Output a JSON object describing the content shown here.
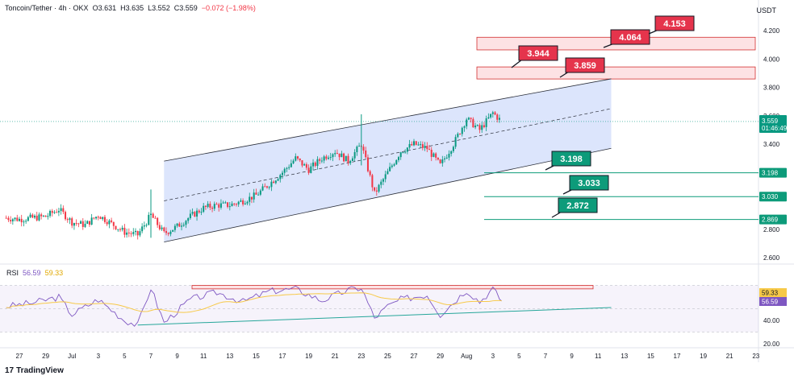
{
  "header": {
    "symbol": "Toncoin/Tether · 4h · OKX",
    "open": "O3.631",
    "high": "H3.635",
    "low": "L3.552",
    "close": "C3.559",
    "change": "−0.072 (−1.98%)"
  },
  "currency": "USDT",
  "price_axis": {
    "ticks": [
      "4.200",
      "4.000",
      "3.800",
      "3.600",
      "3.400",
      "2.800",
      "2.600"
    ]
  },
  "price_tags": {
    "current_price": "3.559",
    "countdown": "01:46:49",
    "level_1": "3.198",
    "level_2": "3.030",
    "level_3": "2.869"
  },
  "time_axis": {
    "ticks": [
      "27",
      "29",
      "Jul",
      "3",
      "5",
      "7",
      "9",
      "11",
      "13",
      "15",
      "17",
      "19",
      "21",
      "23",
      "25",
      "27",
      "29",
      "Aug",
      "3",
      "5",
      "7",
      "9",
      "11",
      "13",
      "15",
      "17",
      "19",
      "21",
      "23"
    ]
  },
  "annotations": {
    "targets": [
      "3.944",
      "3.859",
      "4.064",
      "4.153"
    ],
    "supports": [
      "3.198",
      "3.033",
      "2.872"
    ]
  },
  "rsi": {
    "label": "RSI",
    "value": "56.59",
    "ma_value": "59.33",
    "axis_ticks": [
      "40.00",
      "20.00"
    ],
    "tag_ma": "59.33",
    "tag_value": "56.59"
  },
  "footer": {
    "brand": "TradingView"
  },
  "colors": {
    "up": "#089981",
    "down": "#f23645",
    "channel_fill": "#d6e0fb",
    "resistance_fill": "#fde2e4",
    "rsi_line": "#7e57c2",
    "rsi_ma": "#f7c948",
    "support_green": "#0d9b7a",
    "target_red": "#e5344c"
  },
  "chart_data": {
    "type": "candlestick",
    "x_range": [
      "Jun 26",
      "Aug 24"
    ],
    "y_range": [
      2.55,
      4.28
    ],
    "close_path": [
      [
        "Jun 26",
        2.88
      ],
      [
        "Jun 27",
        2.87
      ],
      [
        "Jun 28",
        2.88
      ],
      [
        "Jun 29",
        2.89
      ],
      [
        "Jun 30",
        2.94
      ],
      [
        "Jul 1",
        2.85
      ],
      [
        "Jul 2",
        2.83
      ],
      [
        "Jul 3",
        2.9
      ],
      [
        "Jul 4",
        2.84
      ],
      [
        "Jul 5",
        2.78
      ],
      [
        "Jul 6",
        2.76
      ],
      [
        "Jul 7",
        2.9
      ],
      [
        "Jul 8",
        2.77
      ],
      [
        "Jul 9",
        2.82
      ],
      [
        "Jul 10",
        2.89
      ],
      [
        "Jul 11",
        2.95
      ],
      [
        "Jul 12",
        2.97
      ],
      [
        "Jul 13",
        2.97
      ],
      [
        "Jul 14",
        3.0
      ],
      [
        "Jul 15",
        3.04
      ],
      [
        "Jul 16",
        3.12
      ],
      [
        "Jul 17",
        3.2
      ],
      [
        "Jul 18",
        3.3
      ],
      [
        "Jul 19",
        3.22
      ],
      [
        "Jul 20",
        3.3
      ],
      [
        "Jul 21",
        3.35
      ],
      [
        "Jul 22",
        3.28
      ],
      [
        "Jul 23",
        3.4
      ],
      [
        "Jul 24",
        3.05
      ],
      [
        "Jul 25",
        3.2
      ],
      [
        "Jul 26",
        3.35
      ],
      [
        "Jul 27",
        3.4
      ],
      [
        "Jul 28",
        3.37
      ],
      [
        "Jul 29",
        3.25
      ],
      [
        "Jul 30",
        3.4
      ],
      [
        "Jul 31",
        3.58
      ],
      [
        "Aug 1",
        3.5
      ],
      [
        "Aug 2",
        3.62
      ],
      [
        "Aug 2 16:00",
        3.559
      ]
    ],
    "channel": {
      "upper": [
        [
          "Jul 8",
          3.28
        ],
        [
          "Aug 11",
          3.86
        ]
      ],
      "lower": [
        [
          "Jul 8",
          2.71
        ],
        [
          "Aug 11",
          3.37
        ]
      ],
      "mid": [
        [
          "Jul 8",
          3.0
        ],
        [
          "Aug 11",
          3.65
        ]
      ]
    },
    "resistance_zones": [
      [
        3.859,
        3.944
      ],
      [
        4.064,
        4.153
      ]
    ],
    "horizontal_levels": [
      3.198,
      3.03,
      2.869
    ],
    "rsi": {
      "y_range": [
        20,
        80
      ],
      "series": [
        [
          "Jun 26",
          52
        ],
        [
          "Jun 28",
          55
        ],
        [
          "Jun 30",
          60
        ],
        [
          "Jul 1",
          45
        ],
        [
          "Jul 3",
          58
        ],
        [
          "Jul 5",
          40
        ],
        [
          "Jul 6",
          36
        ],
        [
          "Jul 7",
          68
        ],
        [
          "Jul 8",
          38
        ],
        [
          "Jul 10",
          58
        ],
        [
          "Jul 12",
          64
        ],
        [
          "Jul 14",
          56
        ],
        [
          "Jul 16",
          65
        ],
        [
          "Jul 18",
          67
        ],
        [
          "Jul 20",
          57
        ],
        [
          "Jul 22",
          66
        ],
        [
          "Jul 23",
          68
        ],
        [
          "Jul 24",
          42
        ],
        [
          "Jul 25",
          52
        ],
        [
          "Jul 26",
          58
        ],
        [
          "Jul 28",
          62
        ],
        [
          "Jul 29",
          45
        ],
        [
          "Jul 31",
          66
        ],
        [
          "Aug 1",
          56
        ],
        [
          "Aug 2",
          67
        ],
        [
          "Aug 2 16:00",
          56.59
        ]
      ],
      "trendline": [
        [
          "Jul 6",
          36
        ],
        [
          "Aug 11",
          51
        ]
      ],
      "resistance_zone": [
        67,
        70
      ]
    }
  }
}
